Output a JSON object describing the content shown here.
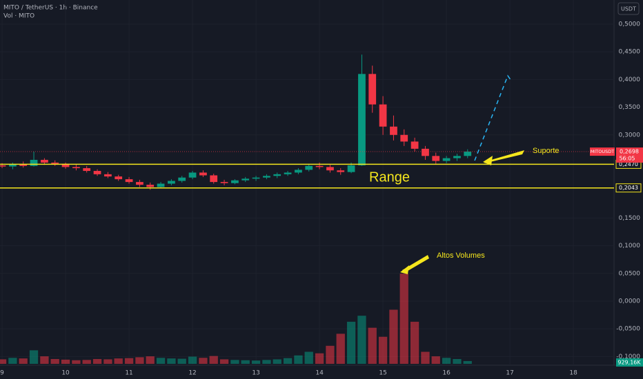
{
  "chart_data": {
    "type": "candlestick",
    "title": "MITO / TetherUS · 1h · Binance",
    "subtitle": "Vol · MITO",
    "currency": "USDT",
    "xlim": [
      8.967,
      18.64
    ],
    "xticks": [
      9,
      10,
      11,
      12,
      13,
      14,
      15,
      16,
      17,
      18
    ],
    "ylim": [
      -0.1157,
      0.5435
    ],
    "yticks": [
      {
        "value": 0.5,
        "label": "0,5000"
      },
      {
        "value": 0.45,
        "label": "0,4500"
      },
      {
        "value": 0.4,
        "label": "0,4000"
      },
      {
        "value": 0.35,
        "label": "0,3500"
      },
      {
        "value": 0.3,
        "label": "0,3000"
      },
      {
        "value": 0.15,
        "label": "0,1500"
      },
      {
        "value": 0.1,
        "label": "0,1000"
      },
      {
        "value": 0.05,
        "label": "0,0500"
      },
      {
        "value": 0,
        "label": "0,0000"
      },
      {
        "value": -0.05,
        "label": "-0,0500"
      },
      {
        "value": -0.1,
        "label": "-0,1000"
      }
    ],
    "vlim": [
      0,
      121000000
    ],
    "up_color": "#089981",
    "down_color": "#f23645",
    "candles": {
      "x": [
        9,
        9.167,
        9.333,
        9.5,
        9.667,
        9.833,
        10,
        10.167,
        10.333,
        10.5,
        10.667,
        10.833,
        11,
        11.167,
        11.333,
        11.5,
        11.667,
        11.833,
        12,
        12.167,
        12.333,
        12.5,
        12.667,
        12.833,
        13,
        13.167,
        13.333,
        13.5,
        13.667,
        13.833,
        14,
        14.167,
        14.333,
        14.5,
        14.667,
        14.833,
        15,
        15.167,
        15.333,
        15.5,
        15.667,
        15.833,
        16,
        16.167,
        16.333
      ],
      "open": [
        0.245,
        0.243,
        0.247,
        0.244,
        0.255,
        0.25,
        0.248,
        0.242,
        0.24,
        0.235,
        0.229,
        0.225,
        0.22,
        0.215,
        0.21,
        0.206,
        0.212,
        0.217,
        0.223,
        0.232,
        0.227,
        0.215,
        0.213,
        0.218,
        0.221,
        0.223,
        0.226,
        0.229,
        0.232,
        0.237,
        0.244,
        0.242,
        0.236,
        0.233,
        0.245,
        0.41,
        0.355,
        0.315,
        0.3,
        0.288,
        0.275,
        0.262,
        0.253,
        0.258,
        0.262
      ],
      "high": [
        0.249,
        0.25,
        0.252,
        0.27,
        0.258,
        0.254,
        0.25,
        0.247,
        0.244,
        0.238,
        0.233,
        0.228,
        0.224,
        0.219,
        0.214,
        0.215,
        0.22,
        0.226,
        0.235,
        0.236,
        0.23,
        0.219,
        0.22,
        0.224,
        0.226,
        0.229,
        0.232,
        0.235,
        0.24,
        0.248,
        0.25,
        0.246,
        0.24,
        0.25,
        0.445,
        0.425,
        0.37,
        0.335,
        0.31,
        0.295,
        0.28,
        0.268,
        0.262,
        0.266,
        0.274
      ],
      "low": [
        0.24,
        0.238,
        0.241,
        0.243,
        0.246,
        0.244,
        0.239,
        0.236,
        0.232,
        0.226,
        0.222,
        0.217,
        0.212,
        0.206,
        0.201,
        0.204,
        0.209,
        0.214,
        0.22,
        0.224,
        0.212,
        0.209,
        0.211,
        0.215,
        0.217,
        0.22,
        0.222,
        0.226,
        0.229,
        0.234,
        0.238,
        0.232,
        0.228,
        0.231,
        0.244,
        0.34,
        0.3,
        0.29,
        0.28,
        0.27,
        0.255,
        0.248,
        0.249,
        0.253,
        0.258
      ],
      "close": [
        0.243,
        0.247,
        0.244,
        0.255,
        0.25,
        0.248,
        0.242,
        0.24,
        0.235,
        0.229,
        0.225,
        0.22,
        0.215,
        0.21,
        0.206,
        0.212,
        0.217,
        0.223,
        0.232,
        0.227,
        0.215,
        0.213,
        0.218,
        0.221,
        0.223,
        0.226,
        0.229,
        0.232,
        0.237,
        0.244,
        0.242,
        0.236,
        0.233,
        0.245,
        0.41,
        0.355,
        0.315,
        0.3,
        0.288,
        0.275,
        0.262,
        0.253,
        0.258,
        0.262,
        0.2698
      ],
      "volume": [
        1500000,
        2000000,
        1800000,
        4500000,
        2500000,
        1600000,
        1400000,
        1200000,
        1300000,
        1600000,
        1500000,
        1800000,
        1900000,
        2200000,
        2500000,
        2000000,
        1800000,
        1700000,
        2400000,
        2000000,
        2600000,
        1500000,
        1300000,
        1200000,
        1100000,
        1300000,
        1500000,
        1900000,
        2800000,
        4000000,
        3500000,
        6000000,
        10000000,
        14000000,
        16000000,
        12000000,
        9000000,
        18000000,
        30000000,
        14000000,
        4000000,
        2500000,
        2000000,
        1600000,
        929160
      ],
      "volume_labels": [
        null,
        null,
        null,
        null,
        null,
        null,
        null,
        null,
        null,
        null,
        null,
        null,
        null,
        null,
        null,
        null,
        null,
        null,
        null,
        null,
        null,
        null,
        null,
        null,
        null,
        null,
        null,
        null,
        null,
        null,
        null,
        null,
        null,
        null,
        null,
        null,
        null,
        null,
        null,
        null,
        null,
        null,
        null,
        null,
        "929,16K"
      ]
    },
    "levels": [
      {
        "value": 0.247,
        "label": "0,2470",
        "color": "#f5e61d"
      },
      {
        "value": 0.2043,
        "label": "0,2043",
        "color": "#f5e61d"
      }
    ],
    "current_price": {
      "value": 0.2698,
      "label": "0,2698",
      "symbol": "MITOUSDT",
      "countdown": "56:05",
      "color": "#f23645"
    },
    "annotations": [
      "Range",
      "Suporte",
      "Altos Volumes"
    ]
  }
}
